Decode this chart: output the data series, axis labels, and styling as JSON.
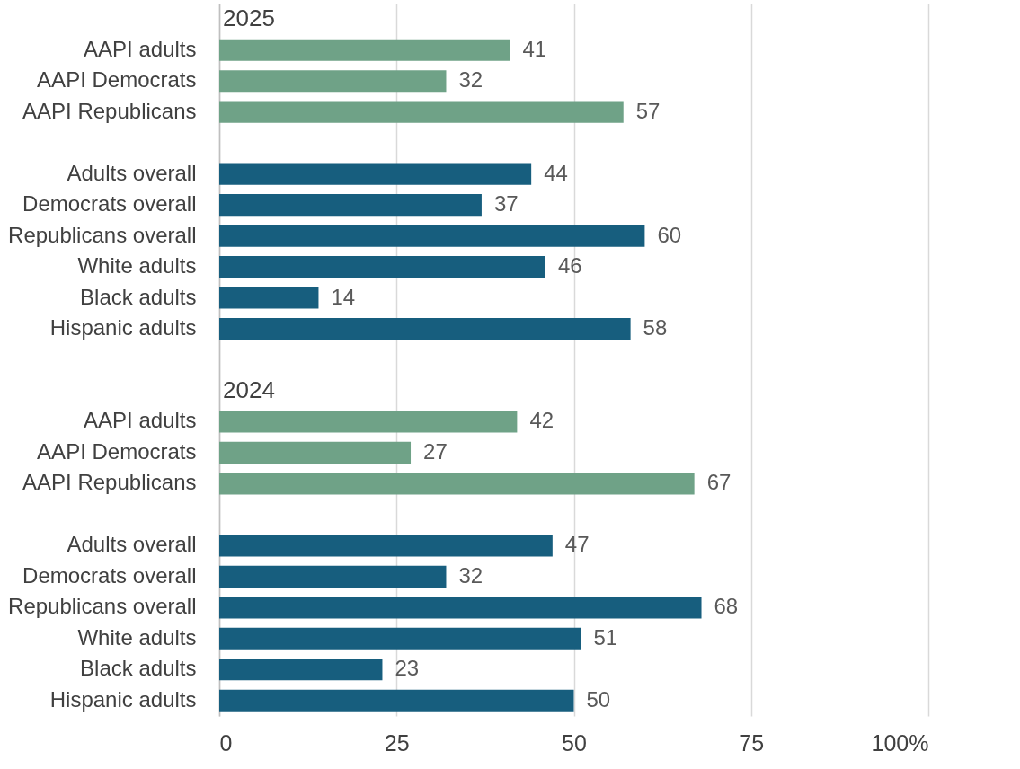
{
  "chart_data": {
    "type": "bar",
    "orientation": "horizontal",
    "categories": [
      null,
      "AAPI adults ",
      "AAPI Democrats",
      "AAPI Republicans",
      null,
      "Adults overall",
      "Democrats overall",
      "Republicans overall",
      "White adults",
      "Black adults",
      "Hispanic adults",
      null,
      null,
      "AAPI adults ",
      "AAPI Democrats",
      "AAPI Republicans",
      null,
      "Adults overall",
      "Democrats overall",
      "Republicans overall",
      "White adults",
      "Black adults",
      "Hispanic adults"
    ],
    "values": [
      null,
      41,
      32,
      57,
      null,
      44,
      37,
      60,
      46,
      14,
      58,
      null,
      null,
      42,
      27,
      67,
      null,
      47,
      32,
      68,
      51,
      23,
      50
    ],
    "colors": [
      null,
      "#6fa287",
      "#6fa287",
      "#6fa287",
      null,
      "#175e7e",
      "#175e7e",
      "#175e7e",
      "#175e7e",
      "#175e7e",
      "#175e7e",
      null,
      null,
      "#6fa287",
      "#6fa287",
      "#6fa287",
      null,
      "#175e7e",
      "#175e7e",
      "#175e7e",
      "#175e7e",
      "#175e7e",
      "#175e7e"
    ],
    "annotations": [
      "2025",
      "2024"
    ],
    "xlim": [
      0,
      100
    ],
    "xticks": [
      0,
      25,
      50,
      75,
      {
        "value": 100,
        "label": "100%"
      }
    ],
    "grid": "x",
    "data_labels": true
  }
}
